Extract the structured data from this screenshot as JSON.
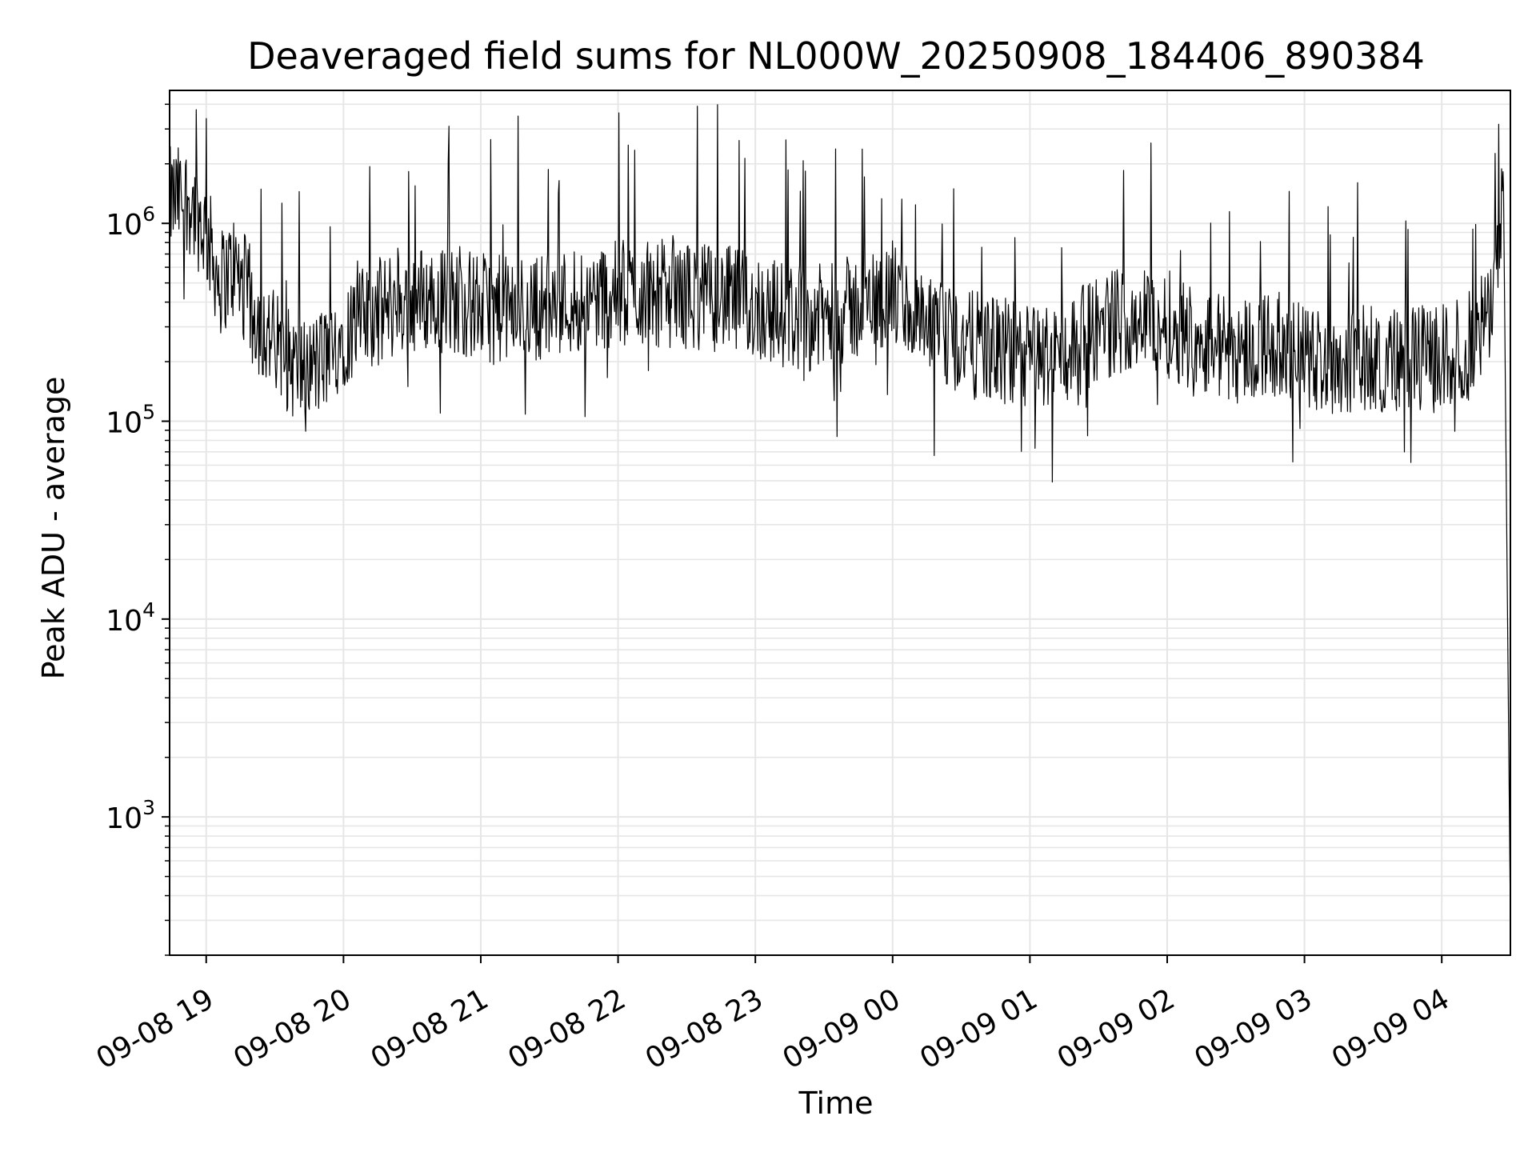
{
  "chart_data": {
    "type": "line",
    "title": "Deaveraged field sums for NL000W_20250908_184406_890384",
    "xlabel": "Time",
    "ylabel": "Peak ADU - average",
    "yscale": "log",
    "ylim": [
      200,
      4700000
    ],
    "xlim": [
      "2025-09-08 18:44",
      "2025-09-09 04:30"
    ],
    "grid": true,
    "grid_color": "#e6e6e6",
    "line_color": "#000000",
    "x_ticks": [
      {
        "label": "09-08 19",
        "time": "2025-09-08 19:00"
      },
      {
        "label": "09-08 20",
        "time": "2025-09-08 20:00"
      },
      {
        "label": "09-08 21",
        "time": "2025-09-08 21:00"
      },
      {
        "label": "09-08 22",
        "time": "2025-09-08 22:00"
      },
      {
        "label": "09-08 23",
        "time": "2025-09-08 23:00"
      },
      {
        "label": "09-09 00",
        "time": "2025-09-09 00:00"
      },
      {
        "label": "09-09 01",
        "time": "2025-09-09 01:00"
      },
      {
        "label": "09-09 02",
        "time": "2025-09-09 02:00"
      },
      {
        "label": "09-09 03",
        "time": "2025-09-09 03:00"
      },
      {
        "label": "09-09 04",
        "time": "2025-09-09 04:00"
      }
    ],
    "y_ticks": [
      {
        "base": "10",
        "exp": "3",
        "value": 1000
      },
      {
        "base": "10",
        "exp": "4",
        "value": 10000
      },
      {
        "base": "10",
        "exp": "5",
        "value": 100000
      },
      {
        "base": "10",
        "exp": "6",
        "value": 1000000
      }
    ],
    "series": [
      {
        "x": [
          "2025-09-08 18:44",
          "2025-09-08 18:52",
          "2025-09-08 19:00",
          "2025-09-08 19:06",
          "2025-09-08 19:12",
          "2025-09-08 19:18",
          "2025-09-08 19:24",
          "2025-09-08 19:30",
          "2025-09-08 19:36",
          "2025-09-08 19:42",
          "2025-09-08 19:48",
          "2025-09-08 19:54",
          "2025-09-08 20:00",
          "2025-09-08 20:10",
          "2025-09-08 20:20",
          "2025-09-08 20:30",
          "2025-09-08 20:40",
          "2025-09-08 20:50",
          "2025-09-08 21:00",
          "2025-09-08 21:15",
          "2025-09-08 21:30",
          "2025-09-08 21:45",
          "2025-09-08 22:00",
          "2025-09-08 22:15",
          "2025-09-08 22:30",
          "2025-09-08 22:45",
          "2025-09-08 23:00",
          "2025-09-08 23:15",
          "2025-09-08 23:30",
          "2025-09-08 23:45",
          "2025-09-09 00:00",
          "2025-09-09 00:15",
          "2025-09-09 00:30",
          "2025-09-09 00:45",
          "2025-09-09 01:00",
          "2025-09-09 01:15",
          "2025-09-09 01:30",
          "2025-09-09 01:45",
          "2025-09-09 02:00",
          "2025-09-09 02:15",
          "2025-09-09 02:30",
          "2025-09-09 02:45",
          "2025-09-09 03:00",
          "2025-09-09 03:15",
          "2025-09-09 03:30",
          "2025-09-09 03:45",
          "2025-09-09 04:00",
          "2025-09-09 04:10",
          "2025-09-09 04:20",
          "2025-09-09 04:27",
          "2025-09-09 04:30"
        ],
        "y": [
          1300000,
          1350000,
          900000,
          500000,
          600000,
          450000,
          300000,
          250000,
          200000,
          180000,
          190000,
          220000,
          280000,
          330000,
          380000,
          410000,
          420000,
          400000,
          380000,
          360000,
          390000,
          420000,
          440000,
          450000,
          430000,
          420000,
          380000,
          340000,
          330000,
          380000,
          440000,
          280000,
          250000,
          230000,
          210000,
          220000,
          300000,
          340000,
          310000,
          260000,
          230000,
          250000,
          210000,
          200000,
          210000,
          200000,
          210000,
          230000,
          320000,
          1500000,
          300
        ]
      }
    ]
  }
}
